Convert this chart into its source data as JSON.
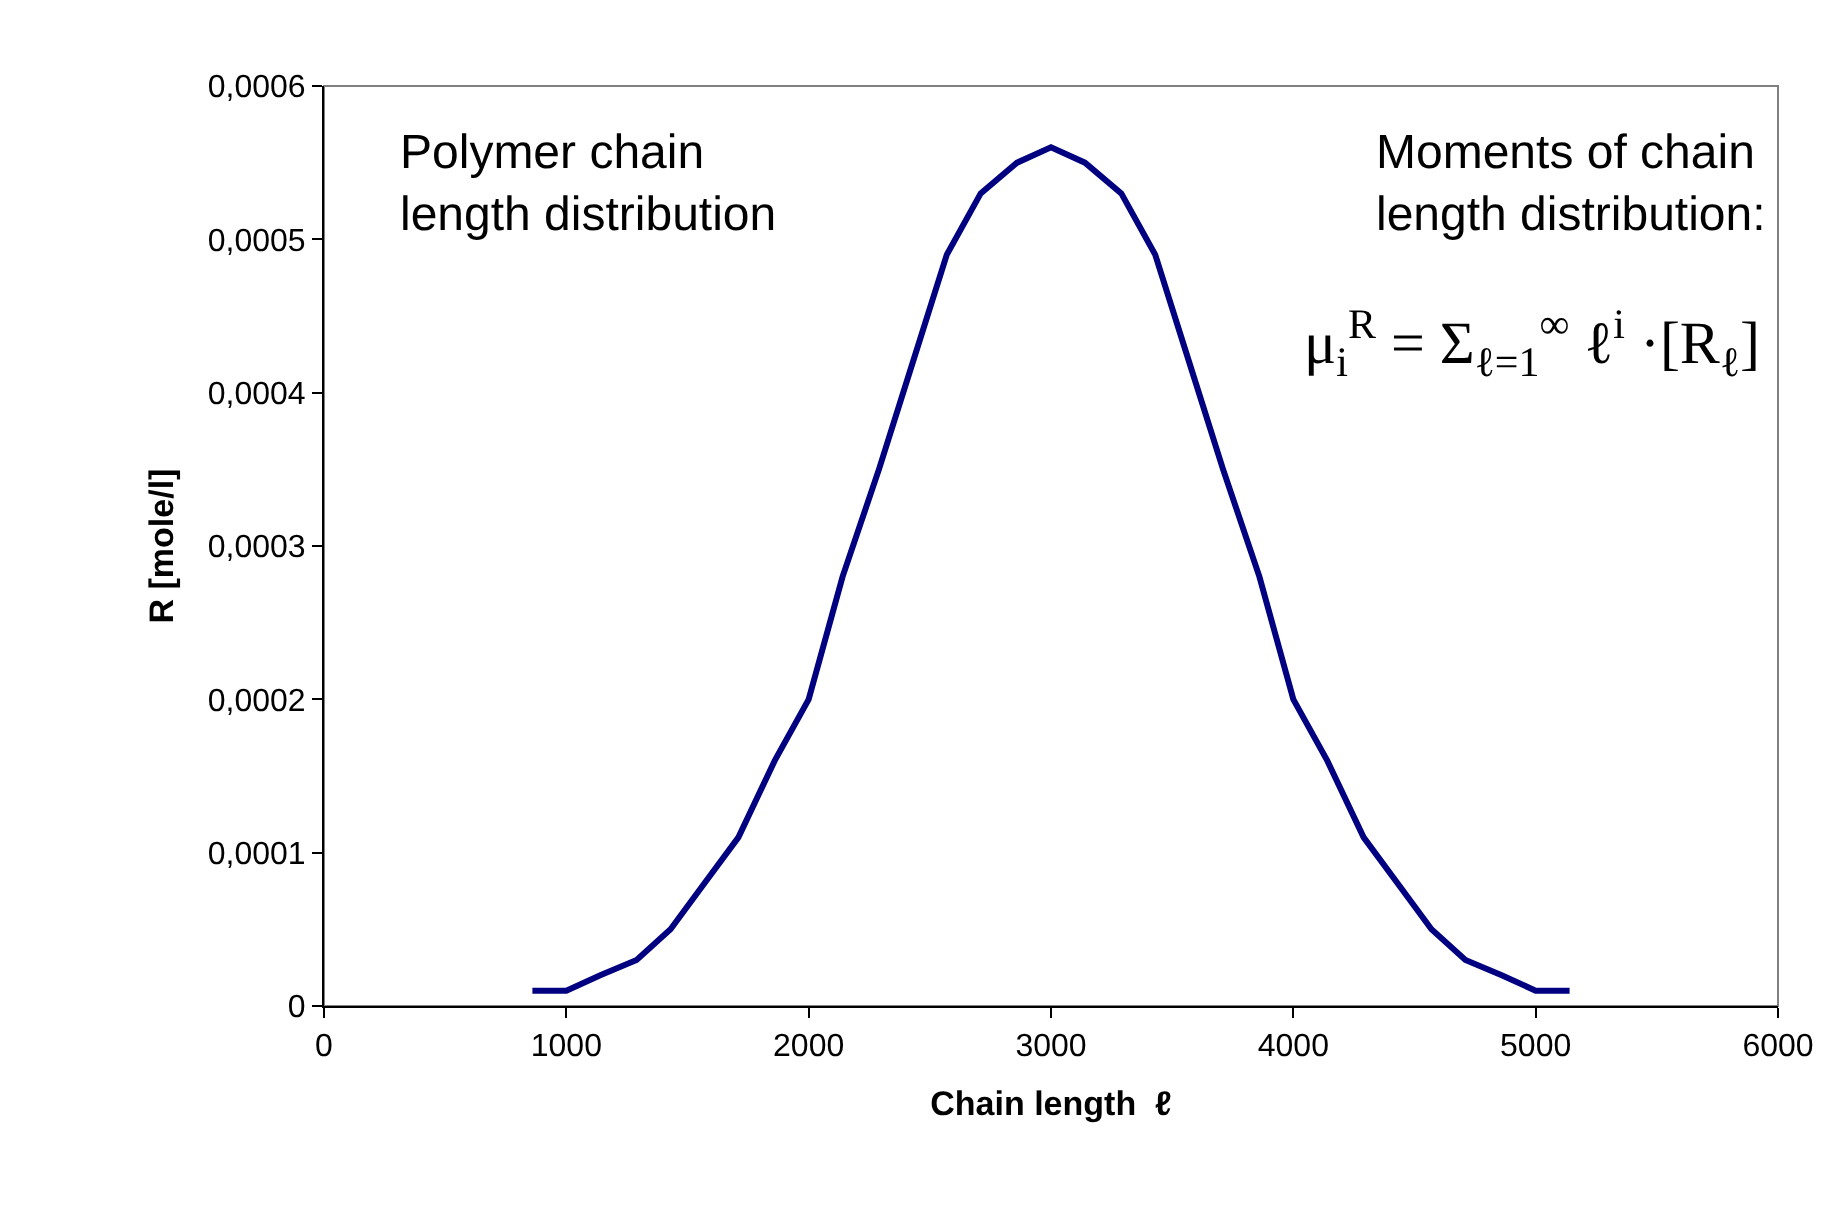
{
  "chart_data": {
    "type": "line",
    "xlabel": "Chain length  ℓ",
    "ylabel": "R [mole/l]",
    "annotations": [
      "Polymer chain\nlength distribution",
      "Moments of chain\nlength distribution:",
      "μ$_{i}$$^{R}$ = Σ$_{ℓ=1}$$^{∞}$ ℓ$^{i}$ ·[R$_{ℓ}$]"
    ],
    "series": [
      {
        "color": "#000080",
        "x": [
          860,
          1000,
          1140,
          1290,
          1430,
          1570,
          1710,
          1860,
          2000,
          2140,
          2290,
          2430,
          2570,
          2710,
          2860,
          3000,
          3140,
          3290,
          3430,
          3570,
          3710,
          3860,
          4000,
          4140,
          4290,
          4430,
          4570,
          4710,
          4860,
          5000,
          5140
        ],
        "values": [
          1e-05,
          1e-05,
          2e-05,
          3e-05,
          5e-05,
          8e-05,
          0.00011,
          0.00016,
          0.0002,
          0.00028,
          0.00035,
          0.00042,
          0.00049,
          0.00053,
          0.00055,
          0.00056,
          0.00055,
          0.00053,
          0.00049,
          0.00042,
          0.00035,
          0.00028,
          0.0002,
          0.00016,
          0.00011,
          8e-05,
          5e-05,
          3e-05,
          2e-05,
          1e-05,
          1e-05
        ]
      }
    ],
    "xlim": [
      0,
      6000
    ],
    "xticks": [
      0,
      1000,
      2000,
      3000,
      4000,
      5000,
      6000
    ],
    "ylim": [
      0,
      0.0006
    ],
    "yticks": [
      {
        "value": 0,
        "label": "0"
      },
      {
        "value": 0.0001,
        "label": "0,0001"
      },
      {
        "value": 0.0002,
        "label": "0,0002"
      },
      {
        "value": 0.0003,
        "label": "0,0003"
      },
      {
        "value": 0.0004,
        "label": "0,0004"
      },
      {
        "value": 0.0005,
        "label": "0,0005"
      },
      {
        "value": 0.0006,
        "label": "0,0006"
      }
    ],
    "grid": false,
    "marker": "none",
    "line_style": "solid"
  }
}
